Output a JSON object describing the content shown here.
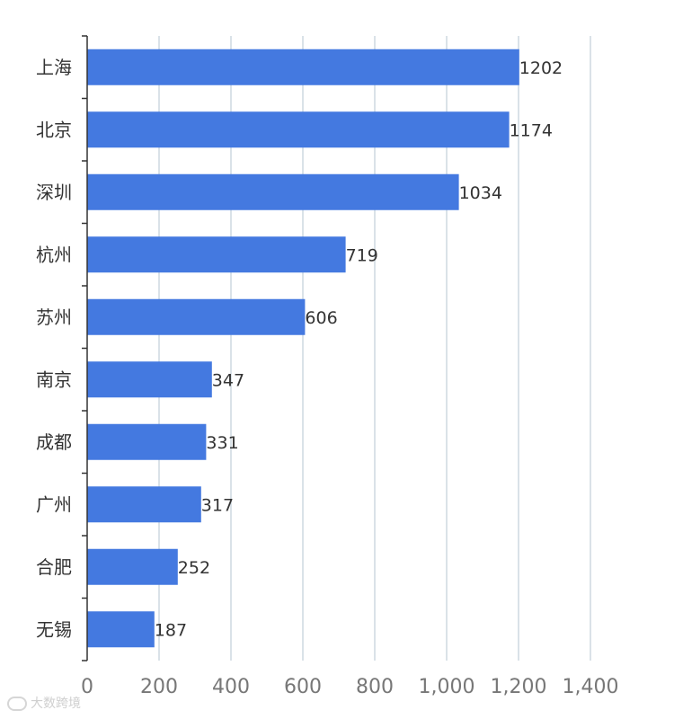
{
  "chart_data": {
    "type": "bar",
    "orientation": "horizontal",
    "categories": [
      "上海",
      "北京",
      "深圳",
      "杭州",
      "苏州",
      "南京",
      "成都",
      "广州",
      "合肥",
      "无锡"
    ],
    "values": [
      1202,
      1174,
      1034,
      719,
      606,
      347,
      331,
      317,
      252,
      187
    ],
    "xlim": [
      0,
      1400
    ],
    "x_ticks": [
      "0",
      "200",
      "400",
      "600",
      "800",
      "1,000",
      "1,200",
      "1,400"
    ],
    "grid": "vertical",
    "data_labels": true
  },
  "watermark": {
    "text": "大数跨境"
  },
  "colors": {
    "bar": "#4479E0",
    "grid": "#CDD8E0",
    "axis": "#333333"
  }
}
